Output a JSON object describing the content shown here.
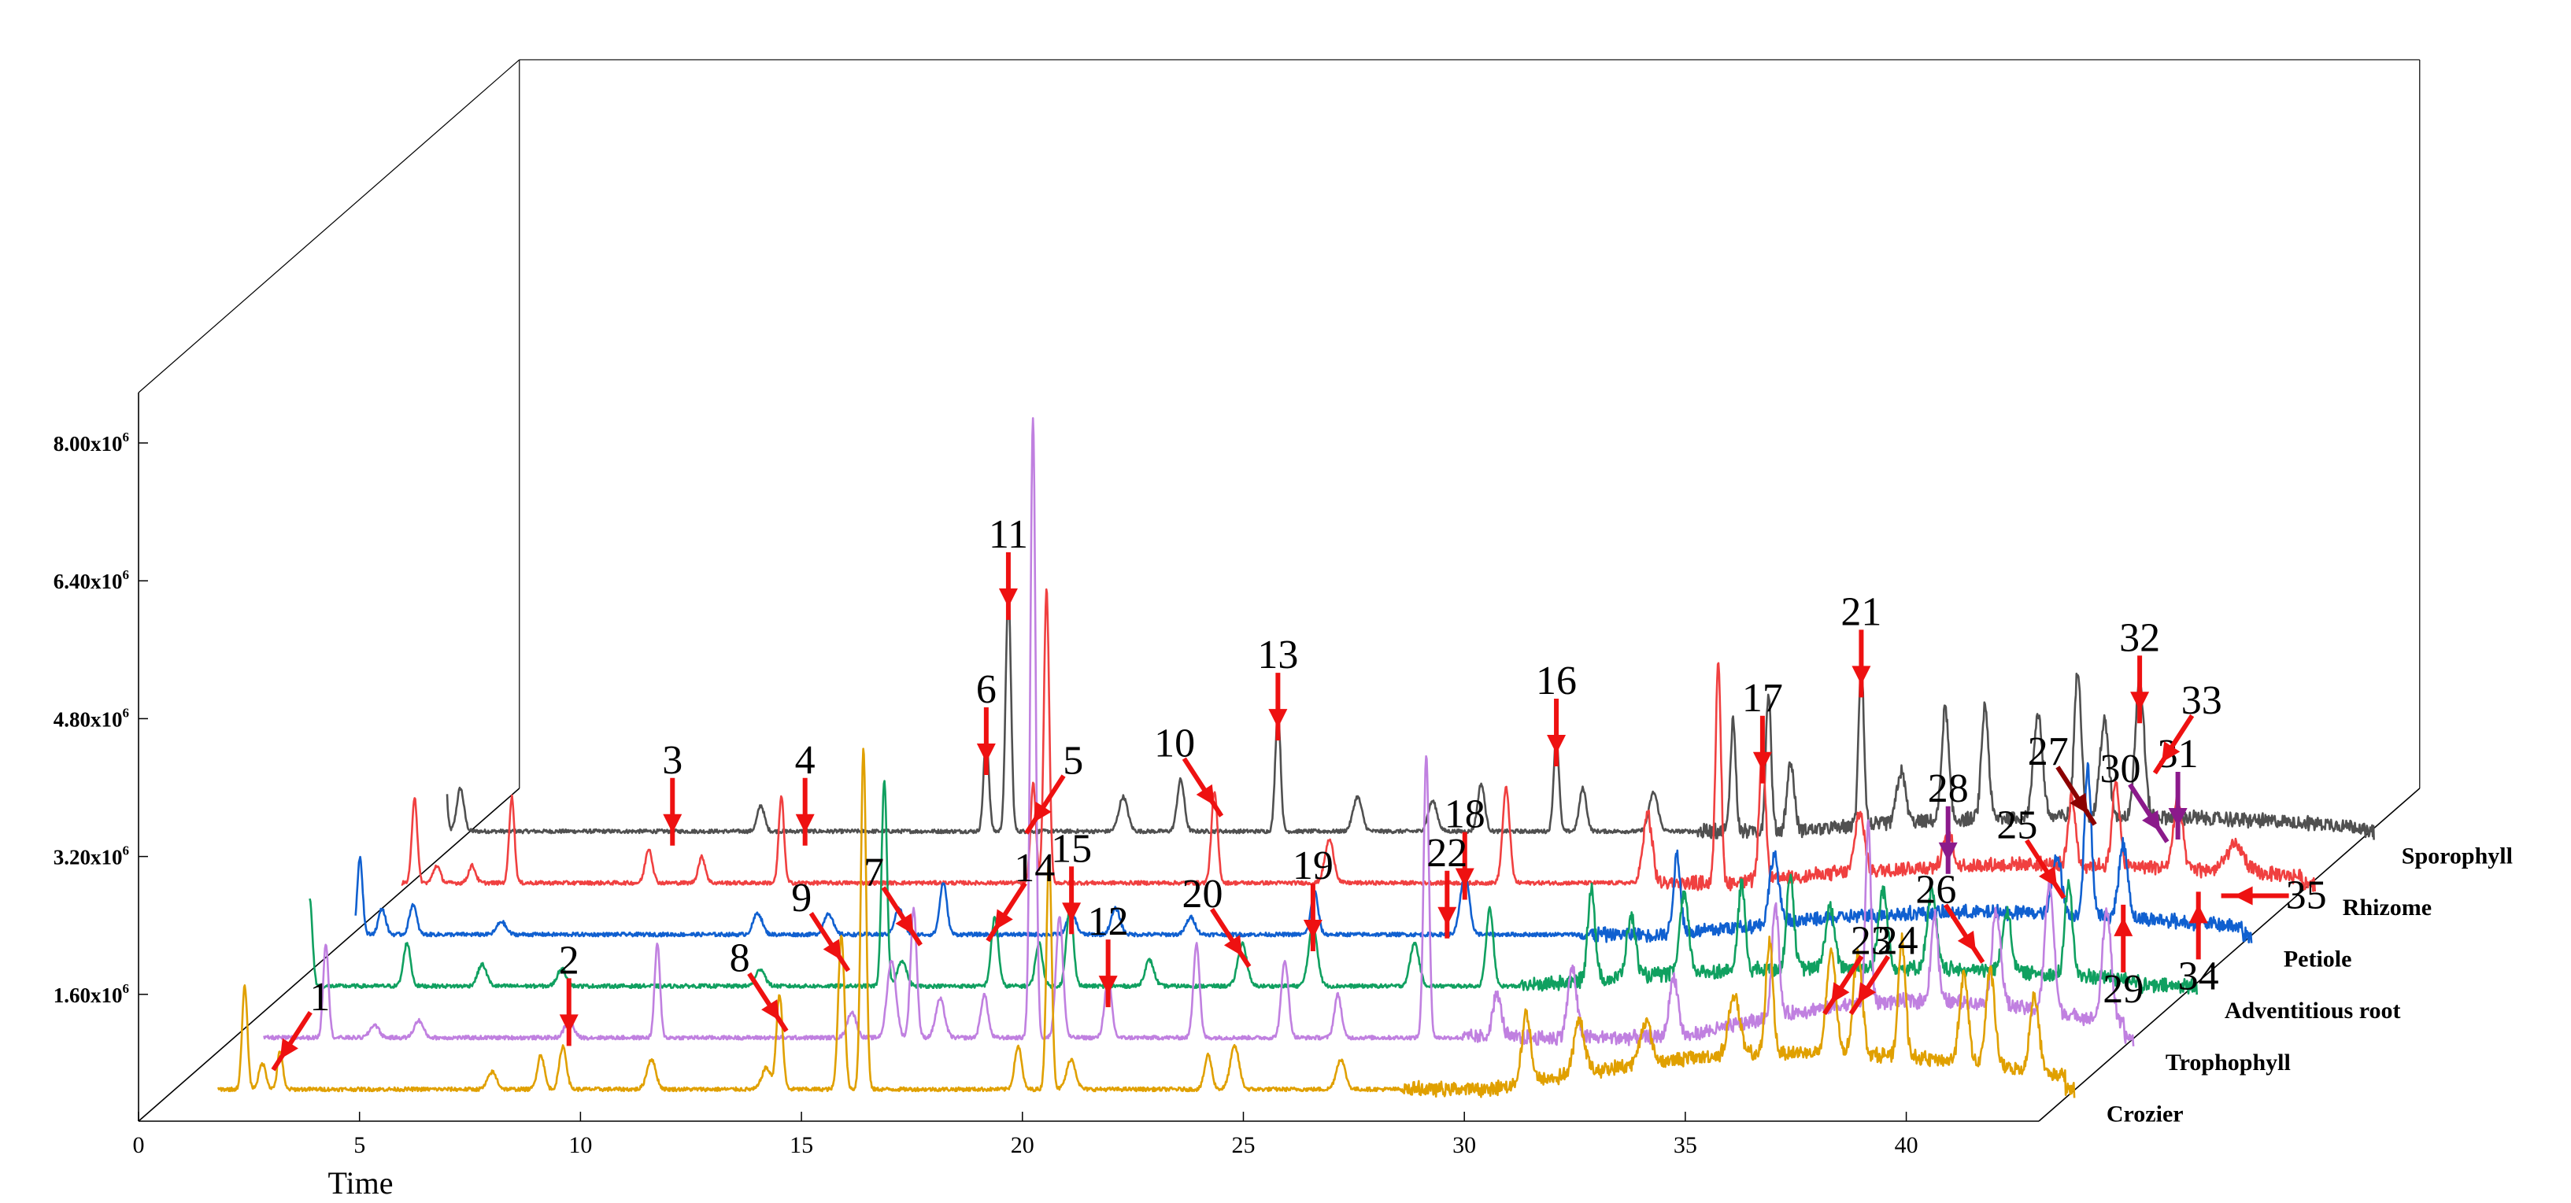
{
  "chart_data": {
    "type": "line",
    "xlabel": "Time",
    "ylabel": "",
    "xlim": [
      0,
      43
    ],
    "ylim": [
      0,
      8000000
    ],
    "x_ticks": [
      "0",
      "5",
      "10",
      "15",
      "20",
      "25",
      "30",
      "35",
      "40"
    ],
    "y_ticks": [
      {
        "label": "1.60x10",
        "sup": "6",
        "value": 1600000
      },
      {
        "label": "3.20x10",
        "sup": "6",
        "value": 3200000
      },
      {
        "label": "4.80x10",
        "sup": "6",
        "value": 4800000
      },
      {
        "label": "6.40x10",
        "sup": "6",
        "value": 6400000
      },
      {
        "label": "8.00x10",
        "sup": "6",
        "value": 8000000
      }
    ],
    "legend": "series names at right end of each trace",
    "grid": false,
    "series": [
      {
        "name": "Crozier",
        "color": "#e0a000",
        "end_x": 43.2,
        "baseline": 100000,
        "peaks": [
          [
            1.8,
            1200000,
            0.06
          ],
          [
            2.2,
            300000,
            0.08
          ],
          [
            2.6,
            450000,
            0.06
          ],
          [
            7.4,
            200000,
            0.1
          ],
          [
            8.5,
            400000,
            0.08
          ],
          [
            9.0,
            500000,
            0.08
          ],
          [
            11.0,
            350000,
            0.1
          ],
          [
            13.6,
            250000,
            0.1
          ],
          [
            13.9,
            1100000,
            0.07
          ],
          [
            15.3,
            1800000,
            0.07
          ],
          [
            15.8,
            3950000,
            0.06
          ],
          [
            19.3,
            500000,
            0.08
          ],
          [
            20.0,
            2700000,
            0.06
          ],
          [
            20.5,
            350000,
            0.1
          ],
          [
            23.6,
            400000,
            0.08
          ],
          [
            24.2,
            500000,
            0.1
          ],
          [
            26.6,
            350000,
            0.1
          ],
          [
            30.8,
            800000,
            0.1
          ],
          [
            32.0,
            600000,
            0.12
          ],
          [
            33.5,
            500000,
            0.12
          ],
          [
            35.5,
            700000,
            0.12
          ],
          [
            36.3,
            1300000,
            0.08
          ],
          [
            37.7,
            1200000,
            0.1
          ],
          [
            38.3,
            1200000,
            0.1
          ],
          [
            39.3,
            1350000,
            0.08
          ],
          [
            40.7,
            1000000,
            0.1
          ],
          [
            41.3,
            1100000,
            0.1
          ],
          [
            42.3,
            900000,
            0.1
          ]
        ],
        "hump": [
          [
            30,
            43,
            500000
          ]
        ]
      },
      {
        "name": "Trophophyll",
        "color": "#c080e0",
        "end_x": 43.2,
        "baseline": 100000,
        "peaks": [
          [
            2.3,
            1100000,
            0.06
          ],
          [
            3.4,
            150000,
            0.1
          ],
          [
            4.4,
            200000,
            0.1
          ],
          [
            7.8,
            200000,
            0.1
          ],
          [
            9.8,
            1100000,
            0.06
          ],
          [
            14.2,
            300000,
            0.1
          ],
          [
            15.1,
            900000,
            0.1
          ],
          [
            15.6,
            1500000,
            0.07
          ],
          [
            16.2,
            450000,
            0.1
          ],
          [
            17.2,
            500000,
            0.08
          ],
          [
            18.3,
            7200000,
            0.06
          ],
          [
            18.9,
            1400000,
            0.08
          ],
          [
            20.0,
            700000,
            0.08
          ],
          [
            22.0,
            1100000,
            0.07
          ],
          [
            24.0,
            900000,
            0.08
          ],
          [
            25.2,
            500000,
            0.08
          ],
          [
            27.2,
            3300000,
            0.06
          ],
          [
            28.8,
            500000,
            0.1
          ],
          [
            30.5,
            800000,
            0.1
          ],
          [
            32.8,
            700000,
            0.1
          ],
          [
            35.1,
            1300000,
            0.08
          ],
          [
            37.2,
            2100000,
            0.06
          ],
          [
            38.7,
            1000000,
            0.08
          ],
          [
            40.1,
            1100000,
            0.1
          ],
          [
            41.3,
            1500000,
            0.1
          ],
          [
            42.6,
            1300000,
            0.1
          ]
        ],
        "hump": [
          [
            33,
            43,
            500000
          ]
        ]
      },
      {
        "name": "Adventitious root",
        "color": "#10a060",
        "end_x": 43.3,
        "baseline": 100000,
        "peaks": [
          [
            0.6,
            1000000,
            0.06
          ],
          [
            2.8,
            500000,
            0.08
          ],
          [
            4.5,
            250000,
            0.1
          ],
          [
            6.3,
            200000,
            0.1
          ],
          [
            10.8,
            200000,
            0.1
          ],
          [
            13.6,
            2400000,
            0.06
          ],
          [
            14.0,
            300000,
            0.1
          ],
          [
            16.1,
            800000,
            0.08
          ],
          [
            17.1,
            500000,
            0.08
          ],
          [
            17.8,
            900000,
            0.08
          ],
          [
            19.6,
            300000,
            0.1
          ],
          [
            21.7,
            500000,
            0.1
          ],
          [
            23.3,
            700000,
            0.1
          ],
          [
            25.6,
            500000,
            0.1
          ],
          [
            27.3,
            900000,
            0.08
          ],
          [
            29.6,
            1100000,
            0.08
          ],
          [
            30.5,
            700000,
            0.1
          ],
          [
            31.7,
            900000,
            0.1
          ],
          [
            33.0,
            1000000,
            0.08
          ],
          [
            34.1,
            1100000,
            0.08
          ],
          [
            35.0,
            700000,
            0.1
          ],
          [
            36.2,
            900000,
            0.1
          ],
          [
            37.3,
            900000,
            0.1
          ],
          [
            39.0,
            700000,
            0.1
          ],
          [
            40.4,
            1100000,
            0.08
          ]
        ],
        "hump": [
          [
            28,
            42,
            250000
          ]
        ]
      },
      {
        "name": "Petiole",
        "color": "#1060d0",
        "end_x": 43.2,
        "baseline": 100000,
        "peaks": [
          [
            0.4,
            900000,
            0.06
          ],
          [
            0.9,
            300000,
            0.08
          ],
          [
            1.6,
            350000,
            0.08
          ],
          [
            3.6,
            150000,
            0.1
          ],
          [
            9.4,
            250000,
            0.1
          ],
          [
            11.0,
            250000,
            0.1
          ],
          [
            12.6,
            300000,
            0.1
          ],
          [
            13.6,
            600000,
            0.08
          ],
          [
            16.5,
            250000,
            0.1
          ],
          [
            17.5,
            300000,
            0.1
          ],
          [
            19.2,
            200000,
            0.1
          ],
          [
            22.0,
            500000,
            0.08
          ],
          [
            25.4,
            700000,
            0.1
          ],
          [
            30.2,
            900000,
            0.08
          ],
          [
            32.4,
            800000,
            0.1
          ],
          [
            38.8,
            700000,
            0.1
          ],
          [
            39.5,
            1700000,
            0.08
          ],
          [
            40.3,
            850000,
            0.1
          ]
        ],
        "hump": [
          [
            30,
            43,
            300000
          ]
        ]
      },
      {
        "name": "Rhizome",
        "color": "#f04040",
        "end_x": 43.3,
        "baseline": 100000,
        "peaks": [
          [
            0.3,
            1000000,
            0.06
          ],
          [
            0.8,
            200000,
            0.08
          ],
          [
            1.6,
            200000,
            0.08
          ],
          [
            2.5,
            1000000,
            0.06
          ],
          [
            5.6,
            400000,
            0.08
          ],
          [
            6.8,
            300000,
            0.08
          ],
          [
            8.6,
            1000000,
            0.06
          ],
          [
            14.3,
            1150000,
            0.06
          ],
          [
            14.6,
            3400000,
            0.06
          ],
          [
            18.4,
            1050000,
            0.07
          ],
          [
            21.0,
            500000,
            0.1
          ],
          [
            25.0,
            1100000,
            0.08
          ],
          [
            28.2,
            800000,
            0.1
          ],
          [
            29.8,
            2600000,
            0.06
          ],
          [
            30.8,
            1500000,
            0.07
          ],
          [
            33.0,
            700000,
            0.1
          ],
          [
            35.0,
            400000,
            0.1
          ],
          [
            37.8,
            800000,
            0.08
          ],
          [
            38.8,
            1000000,
            0.08
          ],
          [
            40.2,
            800000,
            0.1
          ],
          [
            41.5,
            300000,
            0.2
          ]
        ],
        "hump": [
          [
            30,
            43,
            250000
          ]
        ]
      },
      {
        "name": "Sporophyll",
        "color": "#505050",
        "end_x": 43.3,
        "baseline": 100000,
        "peaks": [
          [
            -0.4,
            1700000,
            0.06
          ],
          [
            0.0,
            500000,
            0.08
          ],
          [
            6.8,
            300000,
            0.08
          ],
          [
            11.9,
            1100000,
            0.06
          ],
          [
            12.4,
            2800000,
            0.06
          ],
          [
            15.0,
            400000,
            0.1
          ],
          [
            16.3,
            600000,
            0.08
          ],
          [
            18.5,
            1400000,
            0.06
          ],
          [
            20.3,
            400000,
            0.1
          ],
          [
            22.0,
            350000,
            0.1
          ],
          [
            23.1,
            550000,
            0.08
          ],
          [
            24.8,
            1100000,
            0.06
          ],
          [
            25.4,
            500000,
            0.08
          ],
          [
            27.0,
            450000,
            0.1
          ],
          [
            28.8,
            1300000,
            0.06
          ],
          [
            29.6,
            1600000,
            0.06
          ],
          [
            30.1,
            800000,
            0.08
          ],
          [
            31.7,
            1900000,
            0.06
          ],
          [
            32.6,
            600000,
            0.1
          ],
          [
            33.6,
            1300000,
            0.08
          ],
          [
            34.5,
            1300000,
            0.08
          ],
          [
            35.7,
            1200000,
            0.1
          ],
          [
            36.6,
            1700000,
            0.08
          ],
          [
            37.2,
            1100000,
            0.1
          ],
          [
            38.0,
            1600000,
            0.1
          ]
        ],
        "hump": [
          [
            30,
            43,
            200000
          ]
        ]
      }
    ],
    "annotations": [
      {
        "label": "1",
        "series": "Crozier",
        "x": 2.6,
        "y": 450000,
        "arrow": "red",
        "dir": "ne"
      },
      {
        "label": "2",
        "series": "Trophophyll",
        "x": 7.8,
        "y": 150000,
        "arrow": "red",
        "dir": "n"
      },
      {
        "label": "3",
        "series": "Sporophyll",
        "x": 4.8,
        "y": 80000,
        "arrow": "red",
        "dir": "n"
      },
      {
        "label": "4",
        "series": "Sporophyll",
        "x": 7.8,
        "y": 80000,
        "arrow": "red",
        "dir": "n"
      },
      {
        "label": "5",
        "series": "Rhizome",
        "x": 14.3,
        "y": 800000,
        "arrow": "red",
        "dir": "ne"
      },
      {
        "label": "6",
        "series": "Sporophyll",
        "x": 11.9,
        "y": 900000,
        "arrow": "red",
        "dir": "n"
      },
      {
        "label": "7",
        "series": "Trophophyll",
        "x": 15.6,
        "y": 1300000,
        "arrow": "red",
        "dir": "nw"
      },
      {
        "label": "8",
        "series": "Crozier",
        "x": 13.9,
        "y": 900000,
        "arrow": "red",
        "dir": "nw"
      },
      {
        "label": "9",
        "series": "Crozier",
        "x": 15.3,
        "y": 1600000,
        "arrow": "red",
        "dir": "nw"
      },
      {
        "label": "10",
        "series": "Rhizome",
        "x": 18.4,
        "y": 1000000,
        "arrow": "red",
        "dir": "nw"
      },
      {
        "label": "11",
        "series": "Sporophyll",
        "x": 12.4,
        "y": 2700000,
        "arrow": "red",
        "dir": "n"
      },
      {
        "label": "12",
        "series": "Trophophyll",
        "x": 20.0,
        "y": 600000,
        "arrow": "red",
        "dir": "n"
      },
      {
        "label": "13",
        "series": "Sporophyll",
        "x": 18.5,
        "y": 1300000,
        "arrow": "red",
        "dir": "n"
      },
      {
        "label": "14",
        "series": "Adventitious root",
        "x": 16.1,
        "y": 750000,
        "arrow": "red",
        "dir": "ne"
      },
      {
        "label": "15",
        "series": "Petiole",
        "x": 16.5,
        "y": 250000,
        "arrow": "red",
        "dir": "n"
      },
      {
        "label": "16",
        "series": "Sporophyll",
        "x": 24.8,
        "y": 1000000,
        "arrow": "red",
        "dir": "n"
      },
      {
        "label": "17",
        "series": "Rhizome",
        "x": 30.8,
        "y": 1400000,
        "arrow": "red",
        "dir": "n"
      },
      {
        "label": "18",
        "series": "Petiole",
        "x": 25.4,
        "y": 650000,
        "arrow": "red",
        "dir": "n"
      },
      {
        "label": "19",
        "series": "Adventitious root",
        "x": 23.3,
        "y": 650000,
        "arrow": "red",
        "dir": "n"
      },
      {
        "label": "20",
        "series": "Adventitious root",
        "x": 21.7,
        "y": 450000,
        "arrow": "red",
        "dir": "nw"
      },
      {
        "label": "21",
        "series": "Sporophyll",
        "x": 31.7,
        "y": 1800000,
        "arrow": "red",
        "dir": "n"
      },
      {
        "label": "22",
        "series": "Petiole",
        "x": 25.0,
        "y": 200000,
        "arrow": "red",
        "dir": "n"
      },
      {
        "label": "23",
        "series": "Crozier",
        "x": 37.7,
        "y": 1100000,
        "arrow": "red",
        "dir": "ne"
      },
      {
        "label": "24",
        "series": "Crozier",
        "x": 38.3,
        "y": 1100000,
        "arrow": "red",
        "dir": "ne"
      },
      {
        "label": "25",
        "series": "Petiole",
        "x": 38.8,
        "y": 650000,
        "arrow": "red",
        "dir": "nw"
      },
      {
        "label": "26",
        "series": "Adventitious root",
        "x": 38.3,
        "y": 500000,
        "arrow": "red",
        "dir": "nw"
      },
      {
        "label": "27",
        "series": "Petiole",
        "x": 39.5,
        "y": 1500000,
        "arrow": "darkred",
        "dir": "nw"
      },
      {
        "label": "28",
        "series": "Rhizome",
        "x": 35.0,
        "y": 350000,
        "arrow": "purple",
        "dir": "n"
      },
      {
        "label": "29",
        "series": "Petiole",
        "x": 40.3,
        "y": 300000,
        "arrow": "red",
        "dir": "s"
      },
      {
        "label": "30",
        "series": "Rhizome",
        "x": 39.8,
        "y": 700000,
        "arrow": "purple",
        "dir": "nw"
      },
      {
        "label": "31",
        "series": "Rhizome",
        "x": 40.2,
        "y": 750000,
        "arrow": "purple",
        "dir": "n"
      },
      {
        "label": "32",
        "series": "Sporophyll",
        "x": 38.0,
        "y": 1500000,
        "arrow": "red",
        "dir": "n"
      },
      {
        "label": "33",
        "series": "Sporophyll",
        "x": 38.5,
        "y": 900000,
        "arrow": "red",
        "dir": "ne"
      },
      {
        "label": "34",
        "series": "Petiole",
        "x": 42.0,
        "y": 450000,
        "arrow": "red",
        "dir": "s"
      },
      {
        "label": "35",
        "series": "Petiole",
        "x": 42.8,
        "y": 550000,
        "arrow": "red",
        "dir": "e"
      }
    ],
    "arrow_colors": {
      "red": "#ee1111",
      "darkred": "#8b0000",
      "purple": "#8b1a8b"
    }
  }
}
